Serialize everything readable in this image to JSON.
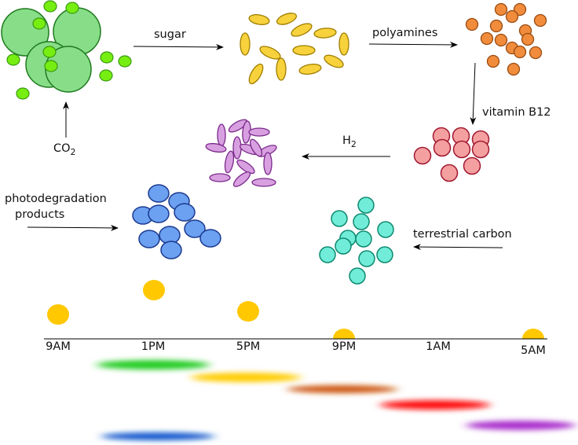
{
  "labels": {
    "co2_base": "CO",
    "co2_sub": "2",
    "sugar": "sugar",
    "polyamines": "polyamines",
    "vitamin_b12": "vitamin B12",
    "h2_base": "H",
    "h2_sub": "2",
    "photodegradation_line1": "photodegradation",
    "photodegradation_line2": "products",
    "terrestrial_carbon": "terrestrial carbon"
  },
  "timeline": {
    "ticks": [
      "9AM",
      "1PM",
      "5PM",
      "9PM",
      "1AM",
      "5AM"
    ]
  },
  "colors": {
    "green_fill": "#88dd88",
    "green_small": "#77ee11",
    "yellow": "#f7d23c",
    "orange": "#f08c3c",
    "pink": "#f5a0a0",
    "purple": "#d8a0e0",
    "blue": "#6ca0f0",
    "teal": "#70ecd8",
    "sun": "#ffc800",
    "band_green": "#22cc22",
    "band_yellow": "#ffcc00",
    "band_orange": "#cc5511",
    "band_red": "#ff1111",
    "band_purple": "#aa33cc",
    "band_blue": "#1155cc"
  }
}
